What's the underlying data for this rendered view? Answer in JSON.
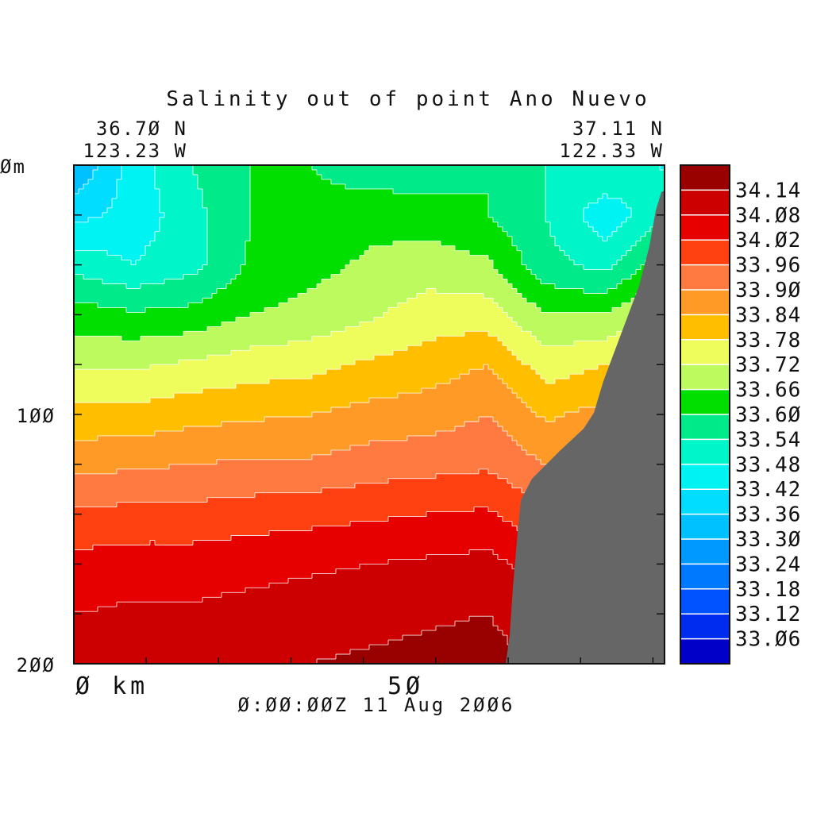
{
  "chart_data": {
    "type": "heatmap",
    "title": "Salinity out of point Ano Nuevo",
    "timestamp": "0:00:00Z  11 Aug 2006",
    "start_position": {
      "lat": "36.70 N",
      "lon": "123.23 W"
    },
    "end_position": {
      "lat": "37.11 N",
      "lon": "122.33 W"
    },
    "x_axis": {
      "ticks": [
        "0",
        "50"
      ],
      "unit": "km",
      "range": [
        0,
        102
      ]
    },
    "y_axis": {
      "ticks": [
        "0",
        "100",
        "200"
      ],
      "unit": "m",
      "range": [
        0,
        200
      ],
      "inverted": true
    },
    "colorbar": {
      "levels": [
        "34.14",
        "34.08",
        "34.02",
        "33.96",
        "33.90",
        "33.84",
        "33.78",
        "33.72",
        "33.66",
        "33.60",
        "33.54",
        "33.48",
        "33.42",
        "33.36",
        "33.30",
        "33.24",
        "33.18",
        "33.12",
        "33.06"
      ],
      "colors": [
        "#990000",
        "#cc0000",
        "#e60000",
        "#ff4010",
        "#ff7a40",
        "#ff9a26",
        "#ffbf00",
        "#eefc5c",
        "#bdfa5e",
        "#00df00",
        "#00ea8a",
        "#00f5c8",
        "#00f3f3",
        "#00ddff",
        "#00c1ff",
        "#0099ff",
        "#0079ff",
        "#0053ff",
        "#002cf0",
        "#0000c8"
      ]
    },
    "bathymetry_color": "#666666",
    "salinity_field": [
      [
        33.3,
        33.45,
        33.54,
        33.6,
        33.6,
        33.56,
        33.56,
        33.6,
        33.54,
        33.54,
        33.47
      ],
      [
        33.4,
        33.44,
        33.52,
        33.6,
        33.62,
        33.64,
        33.63,
        33.6,
        33.54,
        33.44,
        33.53
      ],
      [
        33.52,
        33.48,
        33.52,
        33.61,
        33.64,
        33.67,
        33.69,
        33.67,
        33.56,
        33.52,
        33.64
      ],
      [
        33.63,
        33.61,
        33.62,
        33.66,
        33.68,
        33.71,
        33.75,
        33.75,
        33.66,
        33.66,
        33.75
      ],
      [
        33.71,
        33.71,
        33.73,
        33.75,
        33.76,
        33.79,
        33.81,
        33.84,
        33.75,
        33.78,
        33.8
      ],
      [
        33.8,
        33.8,
        33.82,
        33.83,
        33.84,
        33.86,
        33.87,
        33.9,
        33.83,
        33.86,
        33.86
      ],
      [
        33.88,
        33.89,
        33.9,
        33.91,
        33.91,
        33.93,
        33.94,
        33.95,
        33.9,
        33.92,
        33.93
      ],
      [
        33.97,
        33.98,
        33.98,
        33.99,
        34.0,
        34.01,
        34.02,
        34.03,
        33.97,
        33.98,
        33.99
      ],
      [
        34.04,
        34.05,
        34.05,
        34.06,
        34.07,
        34.08,
        34.09,
        34.1,
        34.05,
        34.05,
        34.06
      ],
      [
        34.08,
        34.09,
        34.09,
        34.1,
        34.11,
        34.12,
        34.13,
        34.14,
        34.1,
        34.1,
        34.1
      ],
      [
        34.11,
        34.12,
        34.12,
        34.13,
        34.14,
        34.15,
        34.16,
        34.17,
        34.12,
        34.12,
        34.12
      ]
    ]
  }
}
